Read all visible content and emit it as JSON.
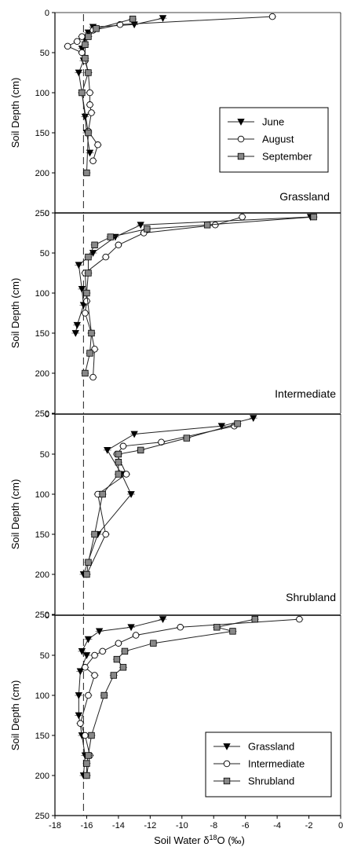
{
  "chart_data": {
    "type": "line",
    "xlabel_main": "Soil Water δ",
    "xlabel_sup": "18",
    "xlabel_tail": "O (‰)",
    "ylabel": "Soil Depth (cm)",
    "xlim": [
      -18,
      0
    ],
    "ylim": [
      0,
      250
    ],
    "x_ticks": [
      -18,
      -16,
      -14,
      -12,
      -10,
      -8,
      -6,
      -4,
      -2,
      0
    ],
    "y_ticks": [
      0,
      50,
      100,
      150,
      200,
      250
    ],
    "reference_line_x": -16.2,
    "series_styles": {
      "June": {
        "marker": "triangle-down",
        "fill": "#000000"
      },
      "August": {
        "marker": "circle",
        "fill": "#ffffff"
      },
      "September": {
        "marker": "square",
        "fill": "#888888"
      },
      "Grassland": {
        "marker": "triangle-down",
        "fill": "#000000"
      },
      "Intermediate": {
        "marker": "circle",
        "fill": "#ffffff"
      },
      "Shrubland": {
        "marker": "square",
        "fill": "#888888"
      }
    },
    "panels": [
      {
        "label": "Grassland",
        "legend": [
          "June",
          "August",
          "September"
        ],
        "series": [
          {
            "name": "June",
            "points": [
              [
                -11.2,
                7
              ],
              [
                -13.0,
                15
              ],
              [
                -15.6,
                18
              ],
              [
                -15.9,
                25
              ],
              [
                -16.1,
                32
              ],
              [
                -16.3,
                45
              ],
              [
                -16.2,
                60
              ],
              [
                -16.5,
                75
              ],
              [
                -16.3,
                100
              ],
              [
                -16.1,
                130
              ],
              [
                -16.0,
                150
              ],
              [
                -15.8,
                175
              ]
            ]
          },
          {
            "name": "August",
            "points": [
              [
                -4.3,
                5
              ],
              [
                -13.9,
                15
              ],
              [
                -15.6,
                22
              ],
              [
                -16.3,
                30
              ],
              [
                -16.6,
                36
              ],
              [
                -17.2,
                42
              ],
              [
                -16.3,
                50
              ],
              [
                -16.1,
                60
              ],
              [
                -15.9,
                75
              ],
              [
                -15.8,
                100
              ],
              [
                -15.8,
                115
              ],
              [
                -15.7,
                125
              ],
              [
                -15.9,
                148
              ],
              [
                -15.3,
                165
              ],
              [
                -15.6,
                185
              ]
            ]
          },
          {
            "name": "September",
            "points": [
              [
                -13.1,
                8
              ],
              [
                -15.4,
                20
              ],
              [
                -15.9,
                30
              ],
              [
                -16.1,
                40
              ],
              [
                -16.1,
                57
              ],
              [
                -15.9,
                75
              ],
              [
                -16.3,
                100
              ],
              [
                -15.9,
                150
              ],
              [
                -16.0,
                200
              ]
            ]
          }
        ]
      },
      {
        "label": "Intermediate",
        "legend": [],
        "series": [
          {
            "name": "June",
            "points": [
              [
                -1.9,
                5
              ],
              [
                -12.6,
                15
              ],
              [
                -14.2,
                30
              ],
              [
                -15.6,
                50
              ],
              [
                -16.5,
                65
              ],
              [
                -16.3,
                95
              ],
              [
                -16.2,
                115
              ],
              [
                -16.6,
                140
              ],
              [
                -16.7,
                150
              ]
            ]
          },
          {
            "name": "August",
            "points": [
              [
                -6.2,
                5
              ],
              [
                -7.9,
                15
              ],
              [
                -12.4,
                25
              ],
              [
                -14.0,
                40
              ],
              [
                -14.8,
                55
              ],
              [
                -16.1,
                75
              ],
              [
                -16.0,
                110
              ],
              [
                -16.1,
                125
              ],
              [
                -15.7,
                150
              ],
              [
                -15.5,
                170
              ],
              [
                -15.6,
                205
              ]
            ]
          },
          {
            "name": "September",
            "points": [
              [
                -1.7,
                5
              ],
              [
                -8.4,
                15
              ],
              [
                -12.2,
                20
              ],
              [
                -14.5,
                30
              ],
              [
                -15.5,
                40
              ],
              [
                -15.9,
                55
              ],
              [
                -15.9,
                75
              ],
              [
                -16.0,
                100
              ],
              [
                -15.7,
                150
              ],
              [
                -15.8,
                175
              ],
              [
                -16.1,
                200
              ]
            ]
          }
        ]
      },
      {
        "label": "Shrubland",
        "legend": [],
        "series": [
          {
            "name": "June",
            "points": [
              [
                -5.5,
                5
              ],
              [
                -7.5,
                15
              ],
              [
                -13.0,
                25
              ],
              [
                -14.7,
                45
              ],
              [
                -13.8,
                75
              ],
              [
                -13.2,
                100
              ],
              [
                -15.3,
                150
              ],
              [
                -16.2,
                200
              ]
            ]
          },
          {
            "name": "August",
            "points": [
              [
                -6.7,
                15
              ],
              [
                -11.3,
                35
              ],
              [
                -13.7,
                40
              ],
              [
                -14.1,
                50
              ],
              [
                -13.5,
                75
              ],
              [
                -15.3,
                100
              ],
              [
                -14.8,
                150
              ],
              [
                -16.0,
                200
              ]
            ]
          },
          {
            "name": "September",
            "points": [
              [
                -6.5,
                12
              ],
              [
                -9.7,
                30
              ],
              [
                -12.6,
                45
              ],
              [
                -14.0,
                50
              ],
              [
                -14.0,
                60
              ],
              [
                -14.0,
                75
              ],
              [
                -15.0,
                100
              ],
              [
                -15.5,
                150
              ],
              [
                -15.9,
                185
              ],
              [
                -16.0,
                200
              ]
            ]
          }
        ]
      },
      {
        "label": "",
        "legend": [
          "Grassland",
          "Intermediate",
          "Shrubland"
        ],
        "series": [
          {
            "name": "Grassland",
            "points": [
              [
                -11.2,
                5
              ],
              [
                -13.2,
                15
              ],
              [
                -15.2,
                20
              ],
              [
                -15.9,
                30
              ],
              [
                -16.3,
                45
              ],
              [
                -16.0,
                50
              ],
              [
                -16.4,
                70
              ],
              [
                -16.5,
                100
              ],
              [
                -16.5,
                125
              ],
              [
                -16.3,
                150
              ],
              [
                -16.1,
                175
              ],
              [
                -16.2,
                200
              ]
            ]
          },
          {
            "name": "Intermediate",
            "points": [
              [
                -2.6,
                5
              ],
              [
                -10.1,
                15
              ],
              [
                -12.9,
                25
              ],
              [
                -14.0,
                35
              ],
              [
                -15.0,
                45
              ],
              [
                -15.5,
                50
              ],
              [
                -16.1,
                65
              ],
              [
                -15.5,
                75
              ],
              [
                -15.9,
                100
              ],
              [
                -16.4,
                135
              ],
              [
                -16.1,
                150
              ],
              [
                -15.8,
                175
              ],
              [
                -16.0,
                200
              ]
            ]
          },
          {
            "name": "Shrubland",
            "points": [
              [
                -5.4,
                5
              ],
              [
                -7.8,
                15
              ],
              [
                -6.8,
                20
              ],
              [
                -11.8,
                35
              ],
              [
                -13.6,
                45
              ],
              [
                -14.1,
                55
              ],
              [
                -13.7,
                65
              ],
              [
                -14.3,
                75
              ],
              [
                -14.9,
                100
              ],
              [
                -15.7,
                150
              ],
              [
                -15.9,
                175
              ],
              [
                -16.0,
                185
              ],
              [
                -16.0,
                200
              ]
            ]
          }
        ]
      }
    ]
  }
}
